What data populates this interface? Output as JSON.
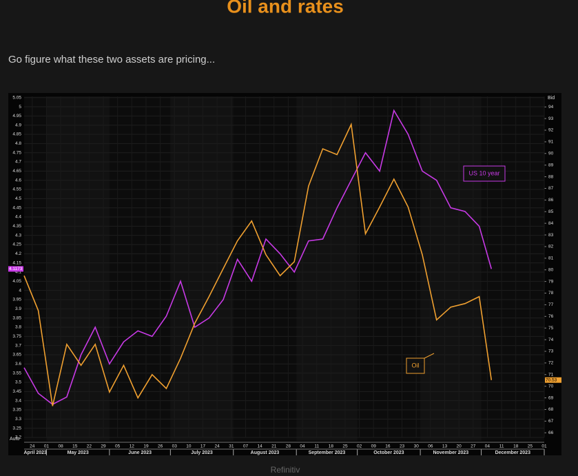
{
  "chart_data": {
    "type": "line",
    "title": "Oil and rates",
    "subtitle": "Go figure what these two assets are pricing...",
    "source": "Refinitiv",
    "corner_label": "Auto",
    "y2_header": "Bid",
    "x": [
      "2023-04-20",
      "2023-04-27",
      "2023-05-04",
      "2023-05-11",
      "2023-05-18",
      "2023-05-25",
      "2023-06-01",
      "2023-06-08",
      "2023-06-15",
      "2023-06-22",
      "2023-06-29",
      "2023-07-06",
      "2023-07-13",
      "2023-07-20",
      "2023-07-27",
      "2023-08-03",
      "2023-08-10",
      "2023-08-17",
      "2023-08-24",
      "2023-08-31",
      "2023-09-07",
      "2023-09-14",
      "2023-09-21",
      "2023-09-28",
      "2023-10-05",
      "2023-10-12",
      "2023-10-19",
      "2023-10-26",
      "2023-11-02",
      "2023-11-09",
      "2023-11-16",
      "2023-11-23",
      "2023-11-30",
      "2023-12-06"
    ],
    "series": [
      {
        "name": "US 10 year",
        "color": "#c83ae6",
        "axis": "y",
        "last_label": "4.1173",
        "values": [
          3.58,
          3.44,
          3.38,
          3.42,
          3.65,
          3.8,
          3.6,
          3.72,
          3.78,
          3.75,
          3.86,
          4.05,
          3.8,
          3.85,
          3.95,
          4.17,
          4.05,
          4.28,
          4.2,
          4.1,
          4.27,
          4.28,
          4.45,
          4.6,
          4.75,
          4.65,
          4.98,
          4.85,
          4.65,
          4.6,
          4.45,
          4.43,
          4.35,
          4.1173
        ]
      },
      {
        "name": "Oil",
        "color": "#f0a030",
        "axis": "y2",
        "last_label": "70.53",
        "values": [
          79.5,
          76.5,
          68.3,
          73.6,
          71.8,
          73.6,
          69.5,
          71.8,
          69,
          71,
          69.8,
          72.4,
          75.4,
          77.7,
          80.1,
          82.5,
          84.2,
          81.3,
          79.5,
          80.7,
          87.2,
          90.4,
          89.9,
          92.5,
          83.1,
          85.4,
          87.8,
          85.4,
          81.3,
          75.7,
          76.8,
          77.1,
          77.7,
          70.53
        ]
      }
    ],
    "xlim": [
      "2023-04-20",
      "2024-01-01"
    ],
    "xticks": [
      {
        "value": "2023-04-24",
        "label": "24"
      },
      {
        "value": "2023-05-01",
        "label": "01"
      },
      {
        "value": "2023-05-08",
        "label": "08"
      },
      {
        "value": "2023-05-15",
        "label": "15"
      },
      {
        "value": "2023-05-22",
        "label": "22"
      },
      {
        "value": "2023-05-29",
        "label": "29"
      },
      {
        "value": "2023-06-05",
        "label": "05"
      },
      {
        "value": "2023-06-12",
        "label": "12"
      },
      {
        "value": "2023-06-19",
        "label": "19"
      },
      {
        "value": "2023-06-26",
        "label": "26"
      },
      {
        "value": "2023-07-03",
        "label": "03"
      },
      {
        "value": "2023-07-10",
        "label": "10"
      },
      {
        "value": "2023-07-17",
        "label": "17"
      },
      {
        "value": "2023-07-24",
        "label": "24"
      },
      {
        "value": "2023-07-31",
        "label": "31"
      },
      {
        "value": "2023-08-07",
        "label": "07"
      },
      {
        "value": "2023-08-14",
        "label": "14"
      },
      {
        "value": "2023-08-21",
        "label": "21"
      },
      {
        "value": "2023-08-28",
        "label": "28"
      },
      {
        "value": "2023-09-04",
        "label": "04"
      },
      {
        "value": "2023-09-11",
        "label": "11"
      },
      {
        "value": "2023-09-18",
        "label": "18"
      },
      {
        "value": "2023-09-25",
        "label": "25"
      },
      {
        "value": "2023-10-02",
        "label": "02"
      },
      {
        "value": "2023-10-09",
        "label": "09"
      },
      {
        "value": "2023-10-16",
        "label": "16"
      },
      {
        "value": "2023-10-23",
        "label": "23"
      },
      {
        "value": "2023-10-30",
        "label": "30"
      },
      {
        "value": "2023-11-06",
        "label": "06"
      },
      {
        "value": "2023-11-13",
        "label": "13"
      },
      {
        "value": "2023-11-20",
        "label": "20"
      },
      {
        "value": "2023-11-27",
        "label": "27"
      },
      {
        "value": "2023-12-04",
        "label": "04"
      },
      {
        "value": "2023-12-11",
        "label": "11"
      },
      {
        "value": "2023-12-18",
        "label": "18"
      },
      {
        "value": "2023-12-25",
        "label": "25"
      },
      {
        "value": "2024-01-01",
        "label": "01"
      }
    ],
    "months": [
      {
        "value": "2023-04",
        "label": "April 2023"
      },
      {
        "value": "2023-05",
        "label": "May 2023"
      },
      {
        "value": "2023-06",
        "label": "June 2023"
      },
      {
        "value": "2023-07",
        "label": "July 2023"
      },
      {
        "value": "2023-08",
        "label": "August 2023"
      },
      {
        "value": "2023-09",
        "label": "September 2023"
      },
      {
        "value": "2023-10",
        "label": "October 2023"
      },
      {
        "value": "2023-11",
        "label": "November 2023"
      },
      {
        "value": "2023-12",
        "label": "December 2023"
      }
    ],
    "ylim": [
      3.2,
      5.05
    ],
    "yticks": [
      3.2,
      3.25,
      3.3,
      3.35,
      3.4,
      3.45,
      3.5,
      3.55,
      3.6,
      3.65,
      3.7,
      3.75,
      3.8,
      3.85,
      3.9,
      3.95,
      4,
      4.05,
      4.1,
      4.15,
      4.2,
      4.25,
      4.3,
      4.35,
      4.4,
      4.45,
      4.5,
      4.55,
      4.6,
      4.65,
      4.7,
      4.75,
      4.8,
      4.85,
      4.9,
      4.95,
      5,
      5.05
    ],
    "y2lim": [
      65.6,
      94.8
    ],
    "y2ticks": [
      66,
      67,
      68,
      69,
      70,
      71,
      72,
      73,
      74,
      75,
      76,
      77,
      78,
      79,
      80,
      81,
      82,
      83,
      84,
      85,
      86,
      87,
      88,
      89,
      90,
      91,
      92,
      93,
      94
    ],
    "grid": true
  }
}
